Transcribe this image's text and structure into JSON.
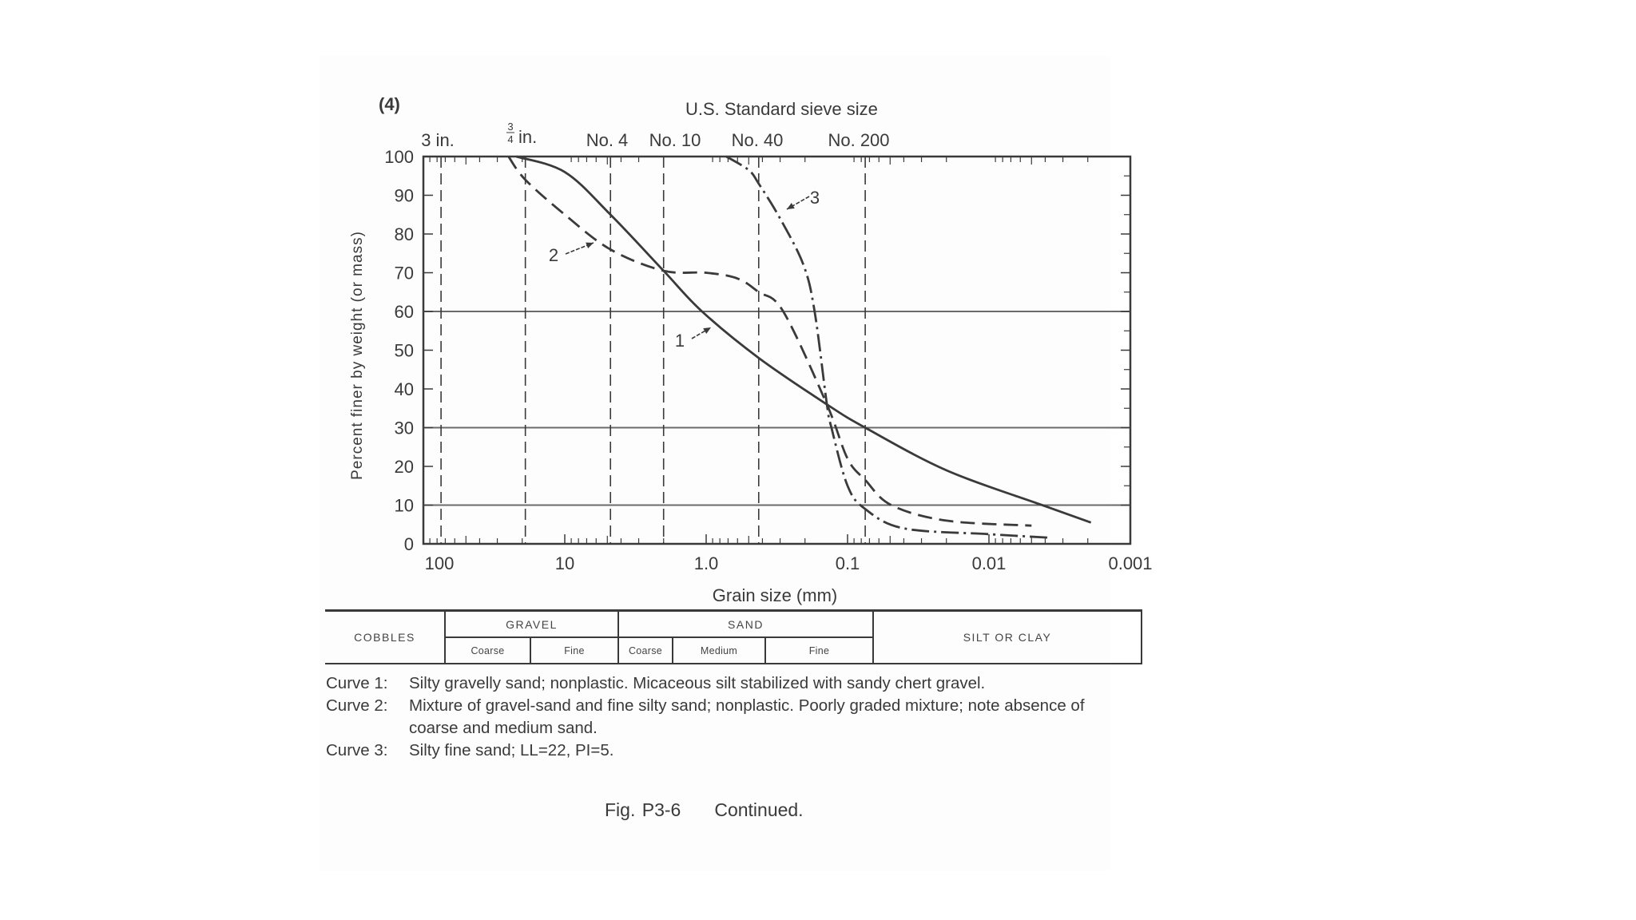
{
  "figure": {
    "panel_label": "(4)",
    "top_axis_title": "U.S. Standard sieve size",
    "caption_fig": "Fig. P3-6",
    "caption_text": "Continued."
  },
  "chart_data": {
    "type": "line",
    "title": "U.S. Standard sieve size",
    "xlabel": "Grain size (mm)",
    "ylabel": "Percent finer by weight (or mass)",
    "x_scale": "log",
    "x_direction": "descending",
    "xlim": [
      100,
      0.001
    ],
    "ylim": [
      0,
      100
    ],
    "x_ticks": [
      {
        "value": 100,
        "label": "100"
      },
      {
        "value": 10,
        "label": "10"
      },
      {
        "value": 1.0,
        "label": "1.0"
      },
      {
        "value": 0.1,
        "label": "0.1"
      },
      {
        "value": 0.01,
        "label": "0.01"
      },
      {
        "value": 0.001,
        "label": "0.001"
      }
    ],
    "y_ticks": [
      0,
      10,
      20,
      30,
      40,
      50,
      60,
      70,
      80,
      90,
      100
    ],
    "horizontal_gridlines": [
      10,
      30,
      60
    ],
    "sieves": [
      {
        "label": "3 in.",
        "size_mm": 75
      },
      {
        "label": "¾ in.",
        "size_mm": 19
      },
      {
        "label": "No. 4",
        "size_mm": 4.75
      },
      {
        "label": "No. 10",
        "size_mm": 2.0
      },
      {
        "label": "No. 40",
        "size_mm": 0.425
      },
      {
        "label": "No. 200",
        "size_mm": 0.075
      }
    ],
    "series": [
      {
        "name": "Curve 1",
        "label": "1",
        "style": "solid",
        "points": [
          [
            22,
            100
          ],
          [
            10,
            96
          ],
          [
            4.75,
            85
          ],
          [
            2.0,
            70.5
          ],
          [
            1.07,
            60
          ],
          [
            0.425,
            48
          ],
          [
            0.14,
            36
          ],
          [
            0.075,
            30
          ],
          [
            0.02,
            19
          ],
          [
            0.0042,
            10
          ],
          [
            0.0019,
            5.5
          ]
        ]
      },
      {
        "name": "Curve 2",
        "label": "2",
        "style": "dashed",
        "points": [
          [
            25,
            100
          ],
          [
            19,
            94
          ],
          [
            10,
            85
          ],
          [
            4.75,
            76
          ],
          [
            2.0,
            70.5
          ],
          [
            1.0,
            70
          ],
          [
            0.6,
            68.5
          ],
          [
            0.425,
            65
          ],
          [
            0.285,
            60
          ],
          [
            0.14,
            36
          ],
          [
            0.1,
            22
          ],
          [
            0.075,
            16.5
          ],
          [
            0.049,
            10
          ],
          [
            0.02,
            6
          ],
          [
            0.005,
            4.7
          ]
        ]
      },
      {
        "name": "Curve 3",
        "label": "3",
        "style": "dash-dot",
        "points": [
          [
            0.72,
            100
          ],
          [
            0.5,
            96.5
          ],
          [
            0.425,
            93
          ],
          [
            0.3,
            84
          ],
          [
            0.205,
            72
          ],
          [
            0.171,
            60
          ],
          [
            0.14,
            36
          ],
          [
            0.13,
            30
          ],
          [
            0.1,
            15
          ],
          [
            0.075,
            9
          ],
          [
            0.04,
            4
          ],
          [
            0.01,
            2.5
          ],
          [
            0.0038,
            1.6
          ]
        ]
      }
    ]
  },
  "classification": {
    "cobbles": "COBBLES",
    "gravel": "GRAVEL",
    "gravel_coarse": "Coarse",
    "gravel_fine": "Fine",
    "sand": "SAND",
    "sand_coarse": "Coarse",
    "sand_medium": "Medium",
    "sand_fine": "Fine",
    "silt_clay": "SILT OR CLAY"
  },
  "notes": [
    {
      "key": "Curve 1:",
      "text": "Silty gravelly sand; nonplastic.  Micaceous silt stabilized with sandy chert gravel."
    },
    {
      "key": "Curve 2:",
      "text": "Mixture of gravel-sand and fine silty sand; nonplastic.  Poorly graded mixture; note absence of coarse and medium sand."
    },
    {
      "key": "Curve 3:",
      "text": "Silty fine sand; LL=22, PI=5."
    }
  ],
  "colors": {
    "ink": "#3a3a3a",
    "grid": "#6a6a6a",
    "paper": "#ffffff"
  }
}
